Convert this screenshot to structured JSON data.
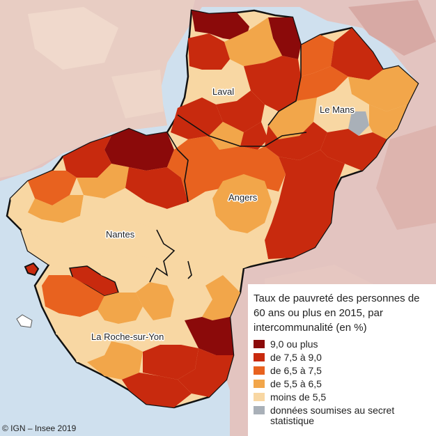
{
  "legend": {
    "title": "Taux de pauvreté des personnes de 60 ans ou plus en 2015, par intercommunalité (en %)",
    "classes": [
      {
        "label": "9,0 ou plus",
        "color": "#8b0a0a"
      },
      {
        "label": "de 7,5 à 9,0",
        "color": "#c82a0e"
      },
      {
        "label": "de 6,5 à 7,5",
        "color": "#e8621f"
      },
      {
        "label": "de 5,5 à 6,5",
        "color": "#f2a64a"
      },
      {
        "label": "moins de 5,5",
        "color": "#f8d7a3"
      },
      {
        "label": "données soumises au secret statistique",
        "color": "#a9b0b8"
      }
    ]
  },
  "cities": {
    "laval": "Laval",
    "le_mans": "Le Mans",
    "angers": "Angers",
    "nantes": "Nantes",
    "la_roche_sur_yon": "La Roche-sur-Yon"
  },
  "credit": "© IGN – Insee 2019",
  "colors": {
    "sea": "#cfe0ee",
    "outside_region": "#e3c4c0",
    "region_border": "#111111"
  }
}
